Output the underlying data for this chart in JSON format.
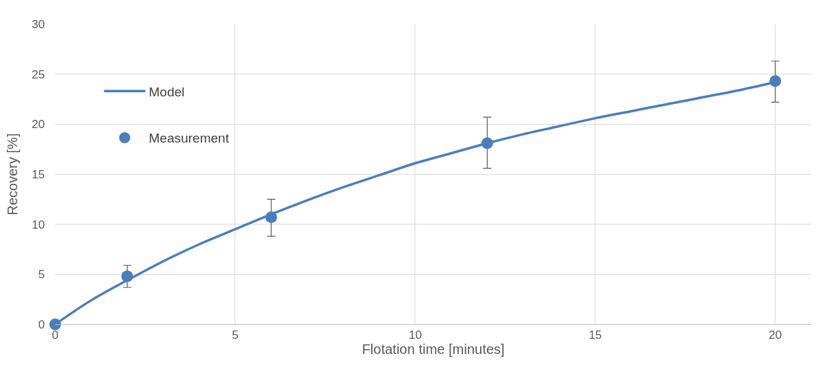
{
  "chart_data": {
    "type": "scatter",
    "xlabel": "Flotation time [minutes]",
    "ylabel": "Recovery [%]",
    "xlim": [
      0,
      21
    ],
    "xticks": [
      0,
      5,
      10,
      15,
      20
    ],
    "ylim": [
      0,
      30
    ],
    "yticks": [
      0,
      5,
      10,
      15,
      20,
      25,
      30
    ],
    "grid": true,
    "legend": "top left",
    "series": [
      {
        "name": "Model",
        "type": "line",
        "color": "#4a7ebb",
        "marker": "none",
        "line_style": "solid",
        "x": [
          0,
          1,
          2,
          3,
          4,
          5,
          6,
          7,
          8,
          9,
          10,
          11,
          12,
          13,
          14,
          15,
          16,
          17,
          18,
          19,
          20
        ],
        "values": [
          0,
          2.4,
          4.4,
          6.3,
          8.0,
          9.5,
          11.0,
          12.4,
          13.7,
          14.9,
          16.1,
          17.1,
          18.1,
          19.0,
          19.8,
          20.6,
          21.3,
          22.0,
          22.7,
          23.4,
          24.2
        ]
      },
      {
        "name": "Measurement",
        "color": "#4a7ebb",
        "marker": "circle",
        "x": [
          0,
          2,
          6,
          12,
          20
        ],
        "values": [
          0,
          4.8,
          10.7,
          18.1,
          24.3
        ],
        "errors": [
          null,
          [
            3.7,
            5.9
          ],
          [
            8.8,
            12.5
          ],
          [
            15.6,
            20.7
          ],
          [
            22.2,
            26.3
          ]
        ]
      }
    ]
  }
}
